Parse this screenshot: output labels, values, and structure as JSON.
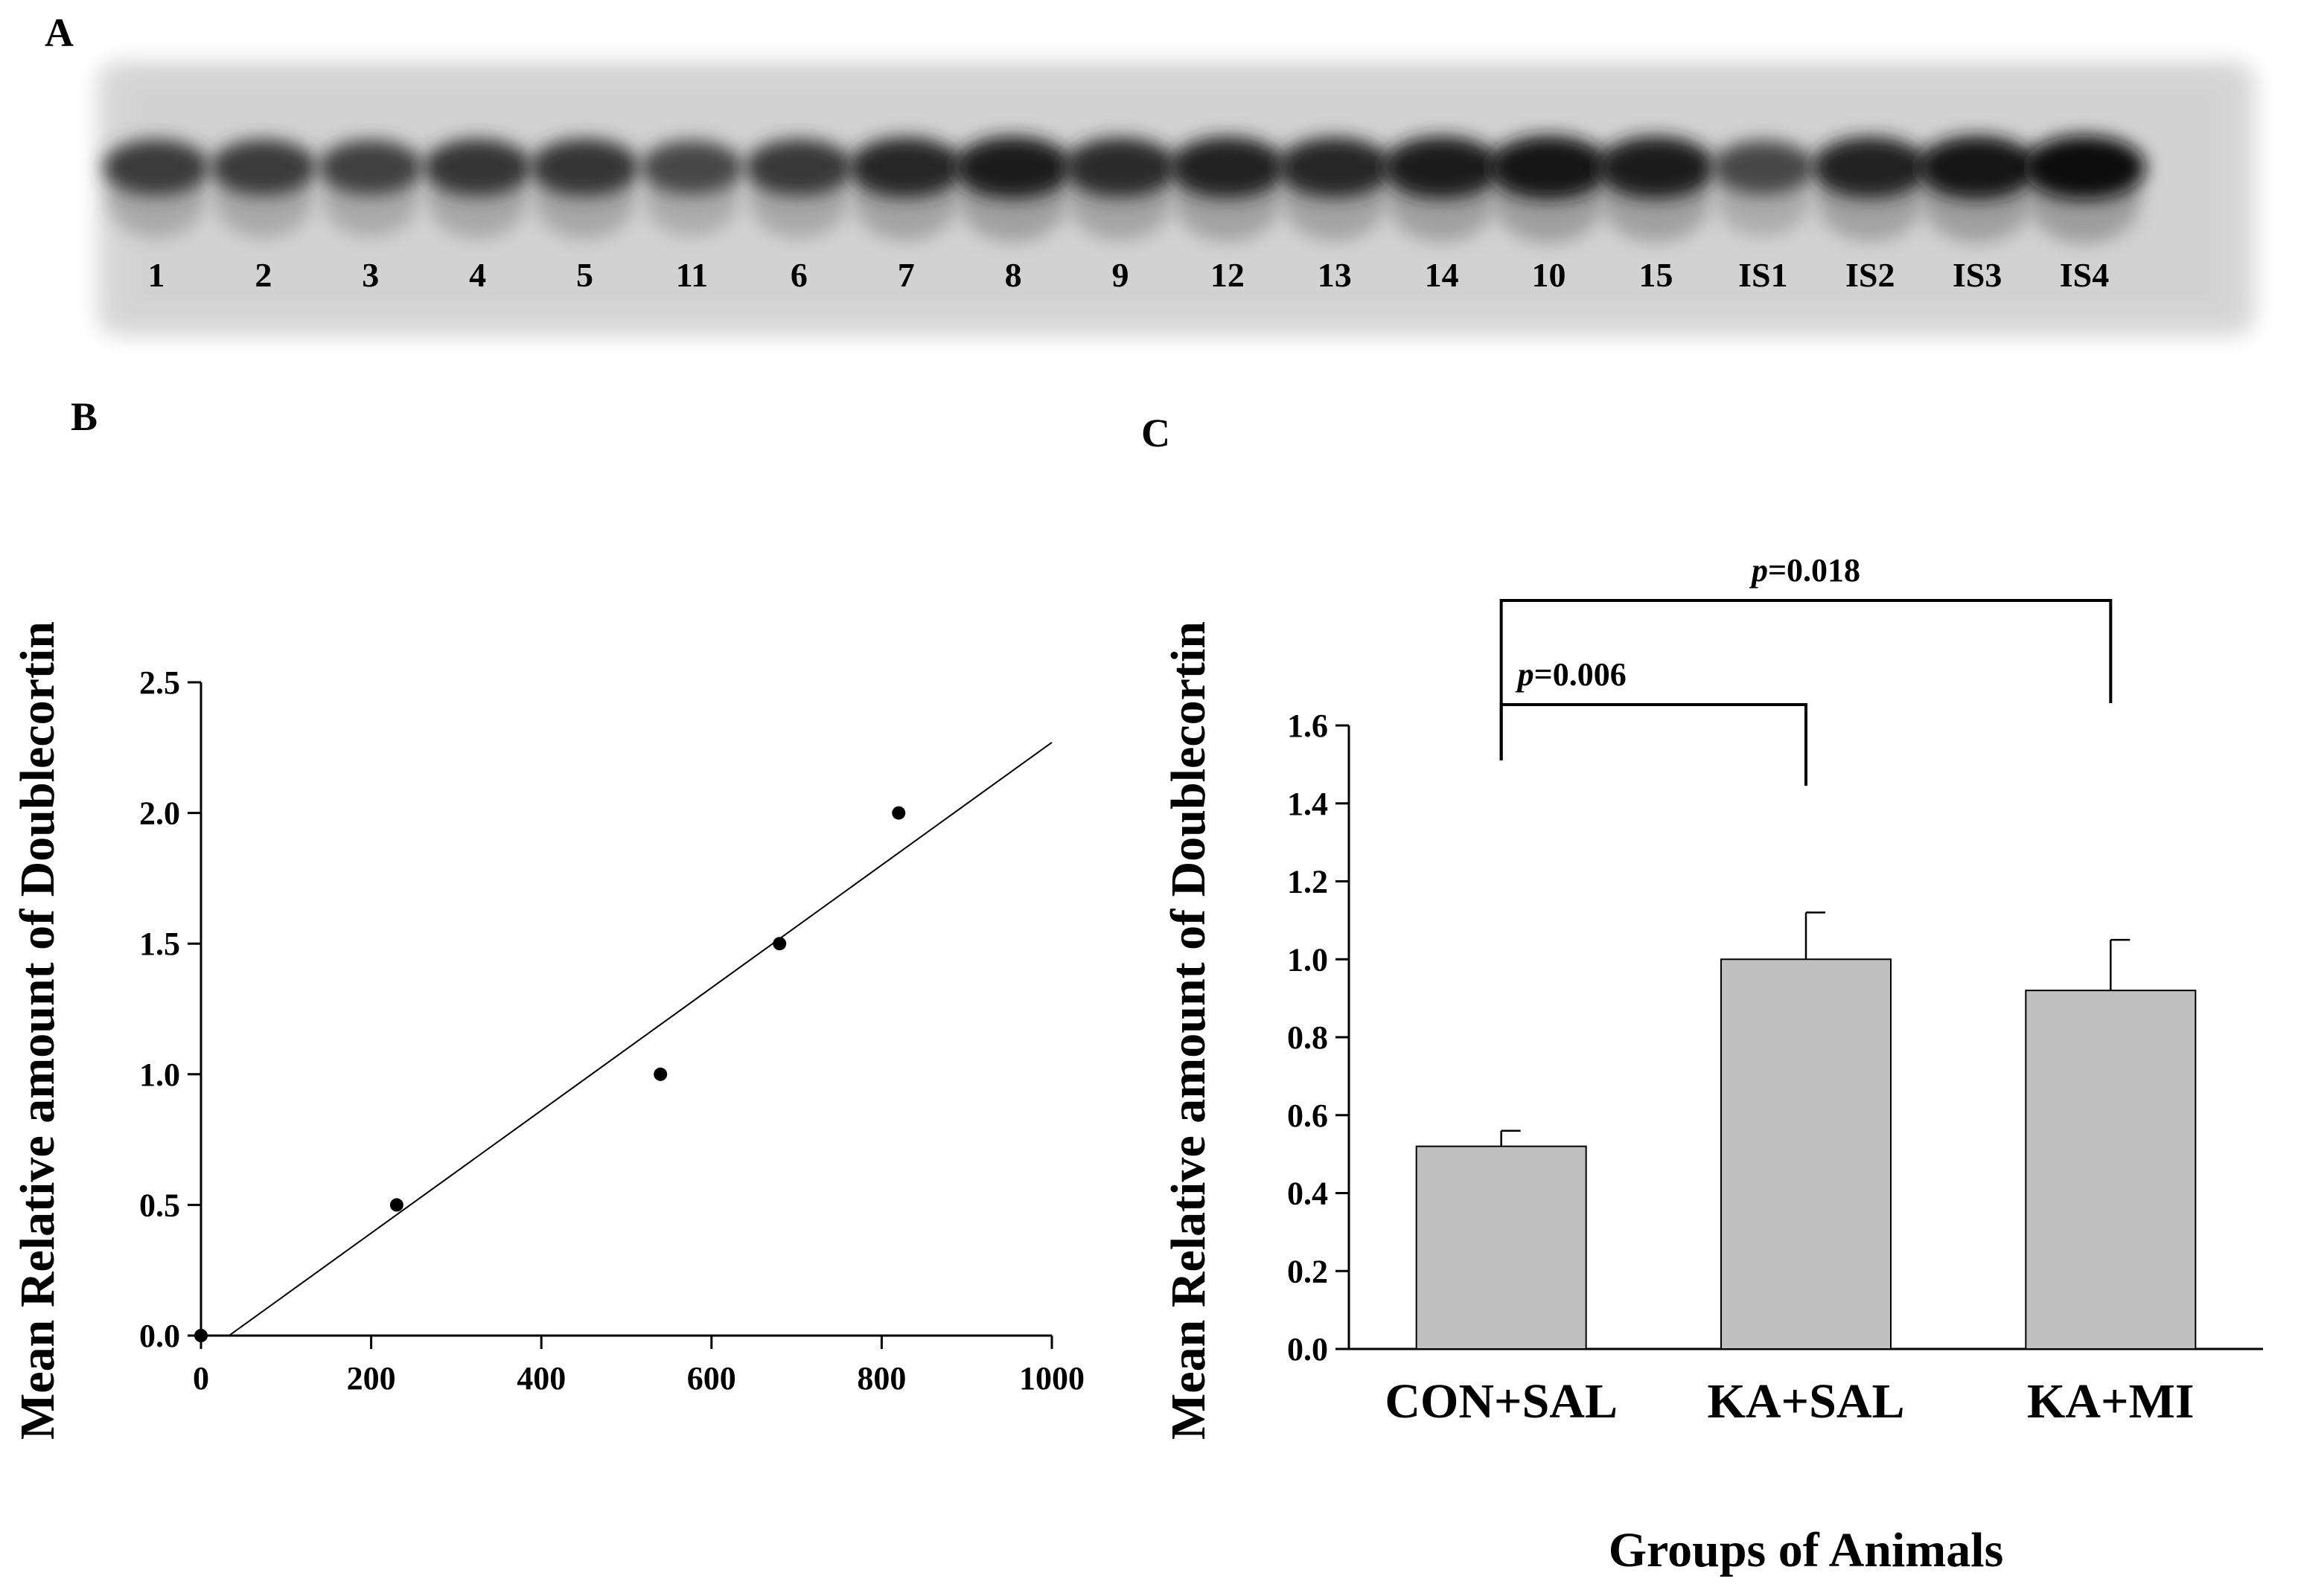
{
  "panels": {
    "a_label": "A",
    "b_label": "B",
    "c_label": "C"
  },
  "blot": {
    "lanes": [
      {
        "label": "1",
        "intensity": 0.55
      },
      {
        "label": "2",
        "intensity": 0.55
      },
      {
        "label": "3",
        "intensity": 0.5
      },
      {
        "label": "4",
        "intensity": 0.6
      },
      {
        "label": "5",
        "intensity": 0.62
      },
      {
        "label": "11",
        "intensity": 0.45
      },
      {
        "label": "6",
        "intensity": 0.58
      },
      {
        "label": "7",
        "intensity": 0.75
      },
      {
        "label": "8",
        "intensity": 0.85
      },
      {
        "label": "9",
        "intensity": 0.72
      },
      {
        "label": "12",
        "intensity": 0.8
      },
      {
        "label": "13",
        "intensity": 0.75
      },
      {
        "label": "14",
        "intensity": 0.85
      },
      {
        "label": "10",
        "intensity": 0.92
      },
      {
        "label": "15",
        "intensity": 0.85
      },
      {
        "label": "IS1",
        "intensity": 0.45
      },
      {
        "label": "IS2",
        "intensity": 0.8
      },
      {
        "label": "IS3",
        "intensity": 0.9
      },
      {
        "label": "IS4",
        "intensity": 0.95
      }
    ]
  },
  "chart_data": [
    {
      "type": "scatter",
      "title": "",
      "xlabel": "",
      "ylabel": "Mean Relative amount of Doublecortin",
      "xlim": [
        0,
        1000
      ],
      "ylim": [
        0,
        2.5
      ],
      "x_ticks": [
        "0",
        "200",
        "400",
        "600",
        "800",
        "1000"
      ],
      "y_ticks": [
        "0.0",
        "0.5",
        "1.0",
        "1.5",
        "2.0",
        "2.5"
      ],
      "points": [
        {
          "x": 0,
          "y": 0.0
        },
        {
          "x": 230,
          "y": 0.5
        },
        {
          "x": 540,
          "y": 1.0
        },
        {
          "x": 680,
          "y": 1.5
        },
        {
          "x": 820,
          "y": 2.0
        }
      ],
      "fit_line": {
        "x": [
          33,
          1000
        ],
        "y": [
          0.0,
          2.27
        ]
      }
    },
    {
      "type": "bar",
      "title": "",
      "xlabel": "Groups of Animals",
      "ylabel": "Mean Relative amount of Doublecortin",
      "ylim": [
        0,
        1.6
      ],
      "y_ticks": [
        "0.0",
        "0.2",
        "0.4",
        "0.6",
        "0.8",
        "1.0",
        "1.2",
        "1.4",
        "1.6"
      ],
      "categories": [
        "CON+SAL",
        "KA+SAL",
        "KA+MI"
      ],
      "values": [
        0.52,
        1.0,
        0.92
      ],
      "errors": [
        0.04,
        0.12,
        0.13
      ],
      "bar_color": "#c0c0c0",
      "comparisons": [
        {
          "from": 0,
          "to": 1,
          "p_italic": "p",
          "p_value": "=0.006"
        },
        {
          "from": 0,
          "to": 2,
          "p_italic": "p",
          "p_value": "=0.018"
        }
      ]
    }
  ]
}
